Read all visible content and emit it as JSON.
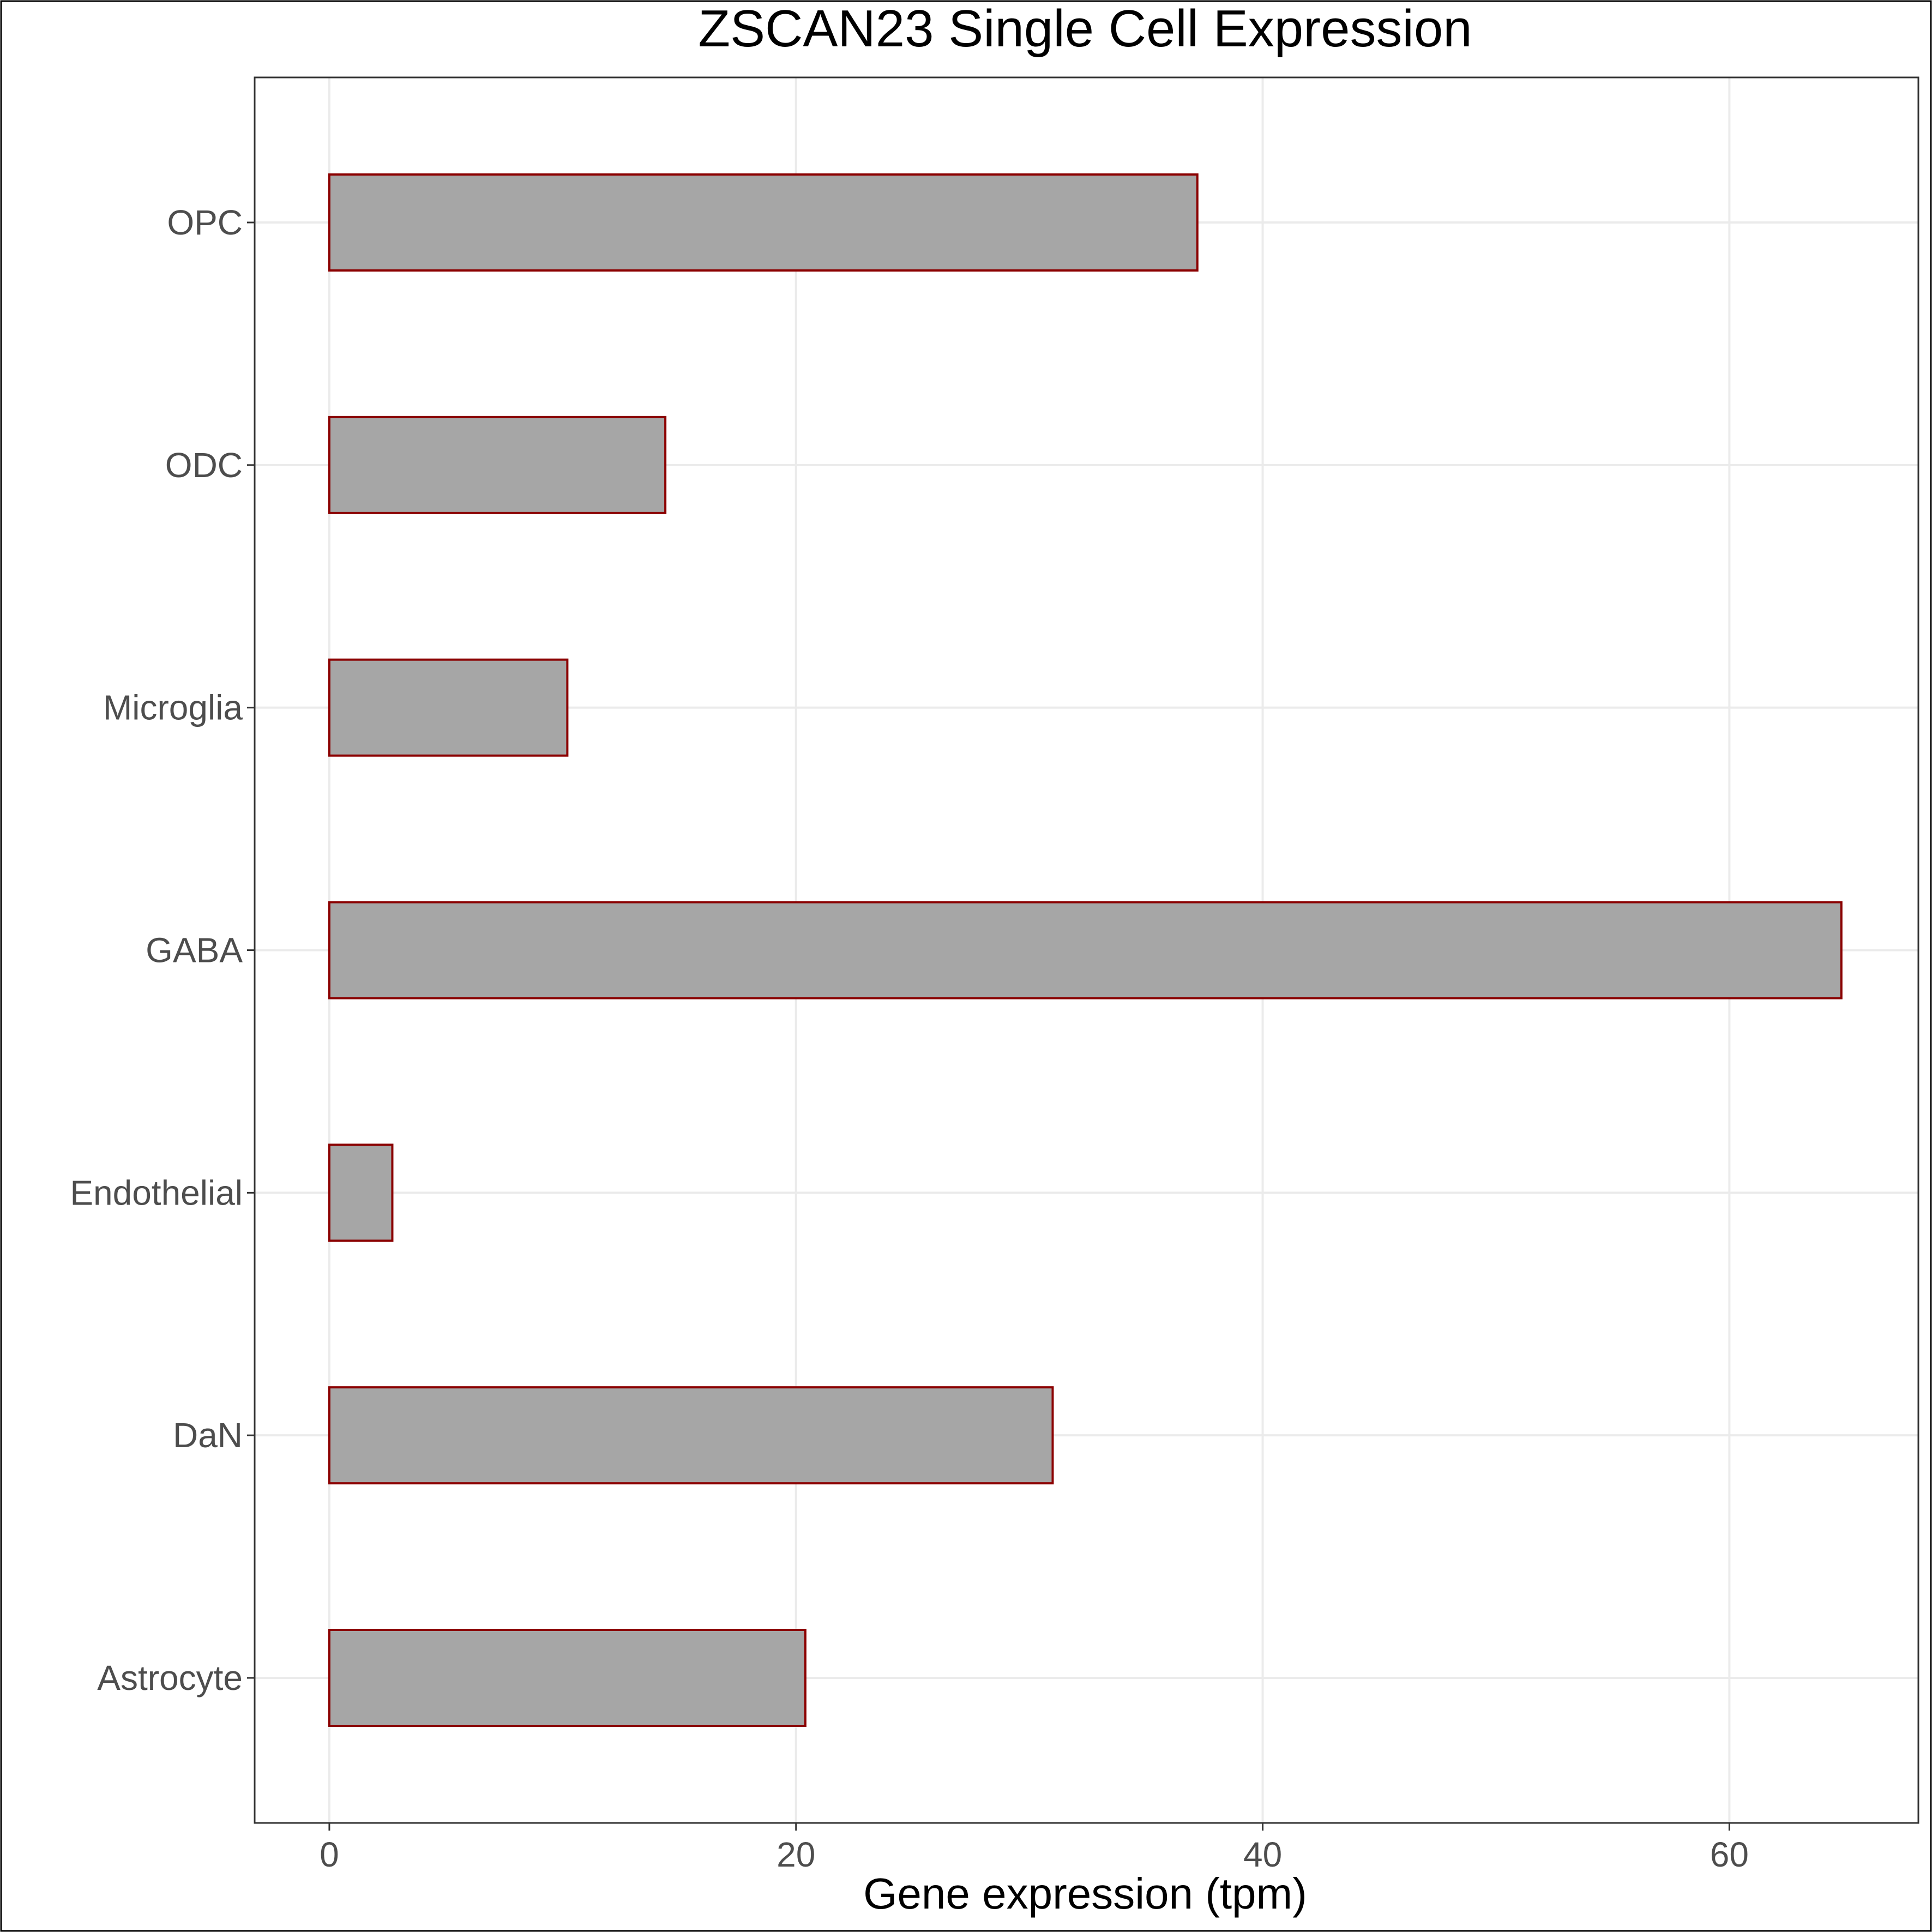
{
  "chart_data": {
    "type": "bar",
    "orientation": "horizontal",
    "title": "ZSCAN23 Single Cell Expression",
    "xlabel": "Gene expression (tpm)",
    "ylabel": "",
    "xlim": [
      -3.2,
      68.1
    ],
    "x_ticks": [
      0,
      20,
      40,
      60
    ],
    "x_tick_labels": [
      "0",
      "20",
      "40",
      "60"
    ],
    "grid": true,
    "legend": "none",
    "categories": [
      "Astrocyte",
      "DaN",
      "Endothelial",
      "GABA",
      "Microglia",
      "ODC",
      "OPC"
    ],
    "values": [
      20.4,
      31.0,
      2.7,
      64.8,
      10.2,
      14.4,
      37.2
    ],
    "bar_fill": "#a6a6a6",
    "bar_stroke": "#8b0000",
    "grid_color": "#ebebeb",
    "panel_border_color": "#333333",
    "outer_border_color": "#000000"
  }
}
